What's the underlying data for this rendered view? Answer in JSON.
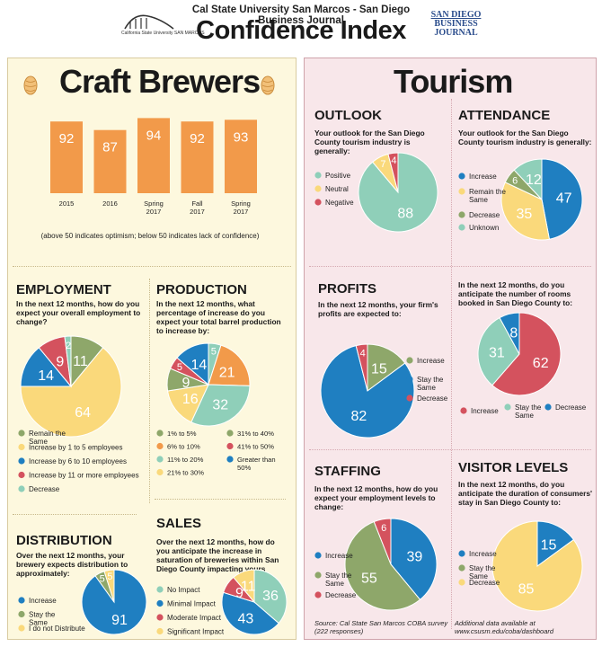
{
  "header": {
    "subtitle": "Cal State University San Marcos - San Diego Business Journal",
    "title": "Confidence Index",
    "csusm_logo_text": "California State University SAN MARCOS",
    "sdbj_line1": "SAN DIEGO",
    "sdbj_line2": "BUSINESS",
    "sdbj_line3": "JOURNAL"
  },
  "colors": {
    "orange": "#f29a4a",
    "green": "#8ea76a",
    "blue": "#1f7fc1",
    "red": "#d4525e",
    "teal": "#8fcfb9",
    "yellow": "#fad97b",
    "left_bg": "#fdf8de",
    "right_bg": "#f8e7ea"
  },
  "left": {
    "title": "Craft Brewers",
    "bar_note": "(above 50 indicates optimism; below 50 indicates lack of confidence)",
    "employment": {
      "title": "EMPLOYMENT",
      "question": "In the next 12 months, how do you expect your overall employment to change?"
    },
    "production": {
      "title": "PRODUCTION",
      "question": "In the next 12 months, what percentage of increase do you expect your total barrel production to increase by:"
    },
    "distribution": {
      "title": "DISTRIBUTION",
      "question": "Over the next 12 months, your brewery expects distribution to approximately:"
    },
    "sales": {
      "title": "SALES",
      "question": "Over the next 12 months, how do you anticipate the increase in saturation of breweries within San Diego County impacting yours"
    }
  },
  "right": {
    "title": "Tourism",
    "outlook": {
      "title": "OUTLOOK",
      "question": "Your outlook for the San Diego County tourism industry is generally:"
    },
    "attendance": {
      "title": "ATTENDANCE",
      "question": "Your outlook for the San Diego County tourism industry is generally:"
    },
    "profits": {
      "title": "PROFITS",
      "question": "In the next 12 months, your firm's profits are expected to:"
    },
    "rooms": {
      "question": "In the next 12 months, do you anticipate the number of rooms booked in San Diego County to:"
    },
    "staffing": {
      "title": "STAFFING",
      "question": "In the next 12 months, how do you expect your employment levels to change:"
    },
    "visitor": {
      "title": "VISITOR LEVELS",
      "question": "In the next 12 months, do you anticipate the duration of consumers' stay in San Diego County to:"
    },
    "source": "Source: Cal State San Marcos COBA survey (222 responses)",
    "additional": "Additional data available at www.csusm.edu/coba/dashboard"
  },
  "chart_data": [
    {
      "id": "brewers-index",
      "type": "bar",
      "categories": [
        "2015",
        "2016",
        "Spring 2017",
        "Fall 2017",
        "Spring 2017"
      ],
      "values": [
        92,
        87,
        94,
        92,
        93
      ],
      "color": "#f29a4a"
    },
    {
      "id": "employment",
      "type": "pie",
      "slices": [
        {
          "label": "Remain the Same",
          "value": 11,
          "color": "#8ea76a"
        },
        {
          "label": "Increase by 1 to 5 employees",
          "value": 64,
          "color": "#fad97b"
        },
        {
          "label": "Increase by 6 to 10 employees",
          "value": 14,
          "color": "#1f7fc1"
        },
        {
          "label": "Increase by 11 or more employees",
          "value": 9,
          "color": "#d4525e"
        },
        {
          "label": "Decrease",
          "value": 2,
          "color": "#8fcfb9"
        }
      ]
    },
    {
      "id": "production",
      "type": "pie",
      "slices": [
        {
          "label": "1% to 5%",
          "value": 9,
          "color": "#8ea76a"
        },
        {
          "label": "6% to 10%",
          "value": 21,
          "color": "#f29a4a"
        },
        {
          "label": "11% to 20%",
          "value": 32,
          "color": "#8fcfb9"
        },
        {
          "label": "21% to 30%",
          "value": 16,
          "color": "#fad97b"
        },
        {
          "label": "31% to 40%",
          "value": 5,
          "color": "#8ea76a"
        },
        {
          "label": "41% to 50%",
          "value": 5,
          "color": "#d4525e"
        },
        {
          "label": "Greater than 50%",
          "value": 14,
          "color": "#1f7fc1"
        }
      ],
      "draw_order": [
        {
          "value": 5,
          "color": "#8fcfb9"
        },
        {
          "value": 21,
          "color": "#f29a4a"
        },
        {
          "value": 32,
          "color": "#8fcfb9"
        },
        {
          "value": 16,
          "color": "#fad97b"
        },
        {
          "value": 9,
          "color": "#8ea76a"
        },
        {
          "value": 5,
          "color": "#d4525e"
        },
        {
          "value": 14,
          "color": "#1f7fc1"
        }
      ]
    },
    {
      "id": "distribution",
      "type": "pie",
      "slices": [
        {
          "label": "Increase",
          "value": 91,
          "color": "#1f7fc1"
        },
        {
          "label": "Stay the Same",
          "value": 5,
          "color": "#8ea76a"
        },
        {
          "label": "I do not Distribute",
          "value": 5,
          "color": "#fad97b"
        }
      ]
    },
    {
      "id": "sales",
      "type": "pie",
      "slices": [
        {
          "label": "No Impact",
          "value": 36,
          "color": "#8fcfb9"
        },
        {
          "label": "Minimal Impact",
          "value": 43,
          "color": "#1f7fc1"
        },
        {
          "label": "Moderate Impact",
          "value": 9,
          "color": "#d4525e"
        },
        {
          "label": "Significant Impact",
          "value": 11,
          "color": "#fad97b"
        }
      ]
    },
    {
      "id": "outlook",
      "type": "pie",
      "slices": [
        {
          "label": "Positive",
          "value": 88,
          "color": "#8fcfb9"
        },
        {
          "label": "Neutral",
          "value": 7,
          "color": "#fad97b"
        },
        {
          "label": "Negative",
          "value": 4,
          "color": "#d4525e"
        }
      ]
    },
    {
      "id": "attendance",
      "type": "pie",
      "slices": [
        {
          "label": "Increase",
          "value": 47,
          "color": "#1f7fc1"
        },
        {
          "label": "Remain the Same",
          "value": 35,
          "color": "#fad97b"
        },
        {
          "label": "Decrease",
          "value": 6,
          "color": "#8ea76a"
        },
        {
          "label": "Unknown",
          "value": 12,
          "color": "#8fcfb9"
        }
      ]
    },
    {
      "id": "profits",
      "type": "pie",
      "slices": [
        {
          "label": "Increase",
          "value": 15,
          "color": "#8ea76a"
        },
        {
          "label": "Stay the Same",
          "value": 82,
          "color": "#1f7fc1"
        },
        {
          "label": "Decrease",
          "value": 4,
          "color": "#d4525e"
        }
      ]
    },
    {
      "id": "rooms",
      "type": "pie",
      "slices": [
        {
          "label": "Increase",
          "value": 62,
          "color": "#d4525e"
        },
        {
          "label": "Stay the Same",
          "value": 31,
          "color": "#8fcfb9"
        },
        {
          "label": "Decrease",
          "value": 8,
          "color": "#1f7fc1"
        }
      ]
    },
    {
      "id": "staffing",
      "type": "pie",
      "slices": [
        {
          "label": "Increase",
          "value": 39,
          "color": "#1f7fc1"
        },
        {
          "label": "Stay the Same",
          "value": 55,
          "color": "#8ea76a"
        },
        {
          "label": "Decrease",
          "value": 6,
          "color": "#d4525e"
        }
      ]
    },
    {
      "id": "visitor",
      "type": "pie",
      "slices": [
        {
          "label": "Increase",
          "value": 15,
          "color": "#1f7fc1"
        },
        {
          "label": "Stay the Same",
          "value": 0,
          "color": "#8ea76a"
        },
        {
          "label": "Decrease",
          "value": 85,
          "color": "#fad97b"
        }
      ]
    }
  ]
}
